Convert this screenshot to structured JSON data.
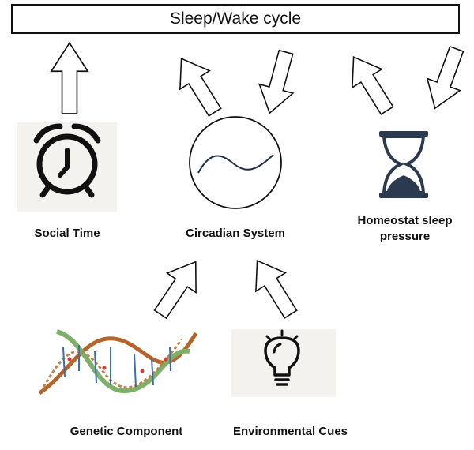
{
  "diagram": {
    "title": "Sleep/Wake cycle",
    "nodes": {
      "social_time": "Social Time",
      "circadian_system": "Circadian System",
      "homeostat": "Homeostat sleep pressure",
      "genetic": "Genetic Component",
      "environmental": "Environmental Cues"
    },
    "icons": {
      "social_time": "alarm-clock-icon",
      "circadian_system": "sine-wave-circle-icon",
      "homeostat": "hourglass-icon",
      "genetic": "dna-helix-image",
      "environmental": "lightbulb-icon"
    },
    "edges": [
      {
        "from": "Social Time",
        "to": "Sleep/Wake cycle"
      },
      {
        "from": "Circadian System",
        "to": "Sleep/Wake cycle"
      },
      {
        "from": "Sleep/Wake cycle",
        "to": "Circadian System"
      },
      {
        "from": "Homeostat sleep pressure",
        "to": "Sleep/Wake cycle"
      },
      {
        "from": "Sleep/Wake cycle",
        "to": "Homeostat sleep pressure"
      },
      {
        "from": "Genetic Component",
        "to": "Circadian System"
      },
      {
        "from": "Environmental Cues",
        "to": "Circadian System"
      }
    ],
    "colors": {
      "icon_dark": "#111111",
      "hourglass": "#2b3a4e",
      "icon_bg": "#f3f2ee",
      "dna_green": "#7fb069",
      "dna_brown": "#b5652b"
    }
  }
}
